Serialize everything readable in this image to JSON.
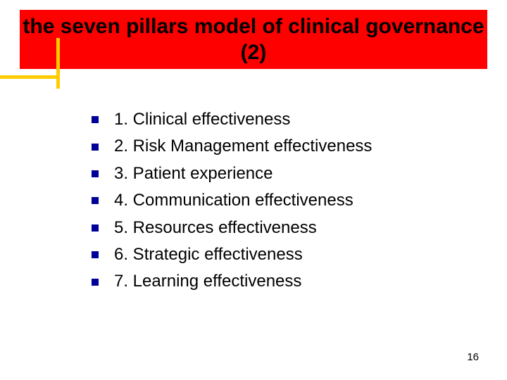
{
  "title": "the seven pillars model of clinical governance (2)",
  "title_bg": "#ff0000",
  "title_color": "#000000",
  "accent_color": "#ffcc00",
  "bullet_color": "#000099",
  "text_color": "#000000",
  "items": [
    "1. Clinical effectiveness",
    "2. Risk Management  effectiveness",
    "3. Patient experience",
    "4. Communication effectiveness",
    "5. Resources effectiveness",
    "6. Strategic effectiveness",
    "7. Learning effectiveness"
  ],
  "page_number": "16"
}
